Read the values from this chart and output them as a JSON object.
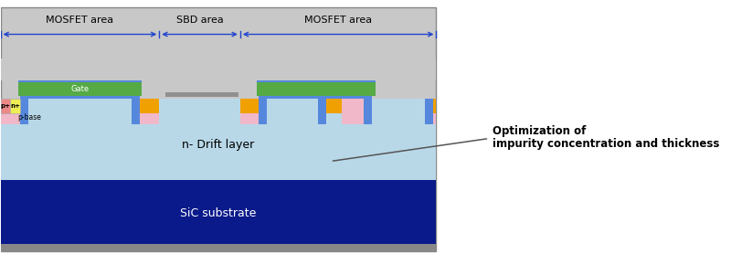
{
  "fig_width": 8.0,
  "fig_height": 2.78,
  "dpi": 100,
  "colors": {
    "bg_gray": "#c8c8c8",
    "drift_layer": "#b8d8e8",
    "sic_substrate": "#0a1a8a",
    "sic_bottom_strip": "#606060",
    "p_base": "#f0b8c8",
    "gate_oxide": "#5588dd",
    "gate_poly": "#55aa44",
    "source_metal": "#f0a000",
    "sbd_metal": "#909090",
    "p_plus_color": "#ee8888",
    "n_plus_color": "#eeee55",
    "arrow_color": "#2244cc",
    "annotation_line": "#555555",
    "white": "#ffffff"
  },
  "labels": {
    "mosfet_left": "MOSFET area",
    "sbd": "SBD area",
    "mosfet_right": "MOSFET area",
    "gate": "Gate",
    "p_plus": "p+",
    "n_plus": "n+",
    "p_base": "p-base",
    "drift": "n- Drift layer",
    "substrate": "SiC substrate",
    "ann1": "Optimization of",
    "ann2": "impurity concentration and thickness"
  }
}
